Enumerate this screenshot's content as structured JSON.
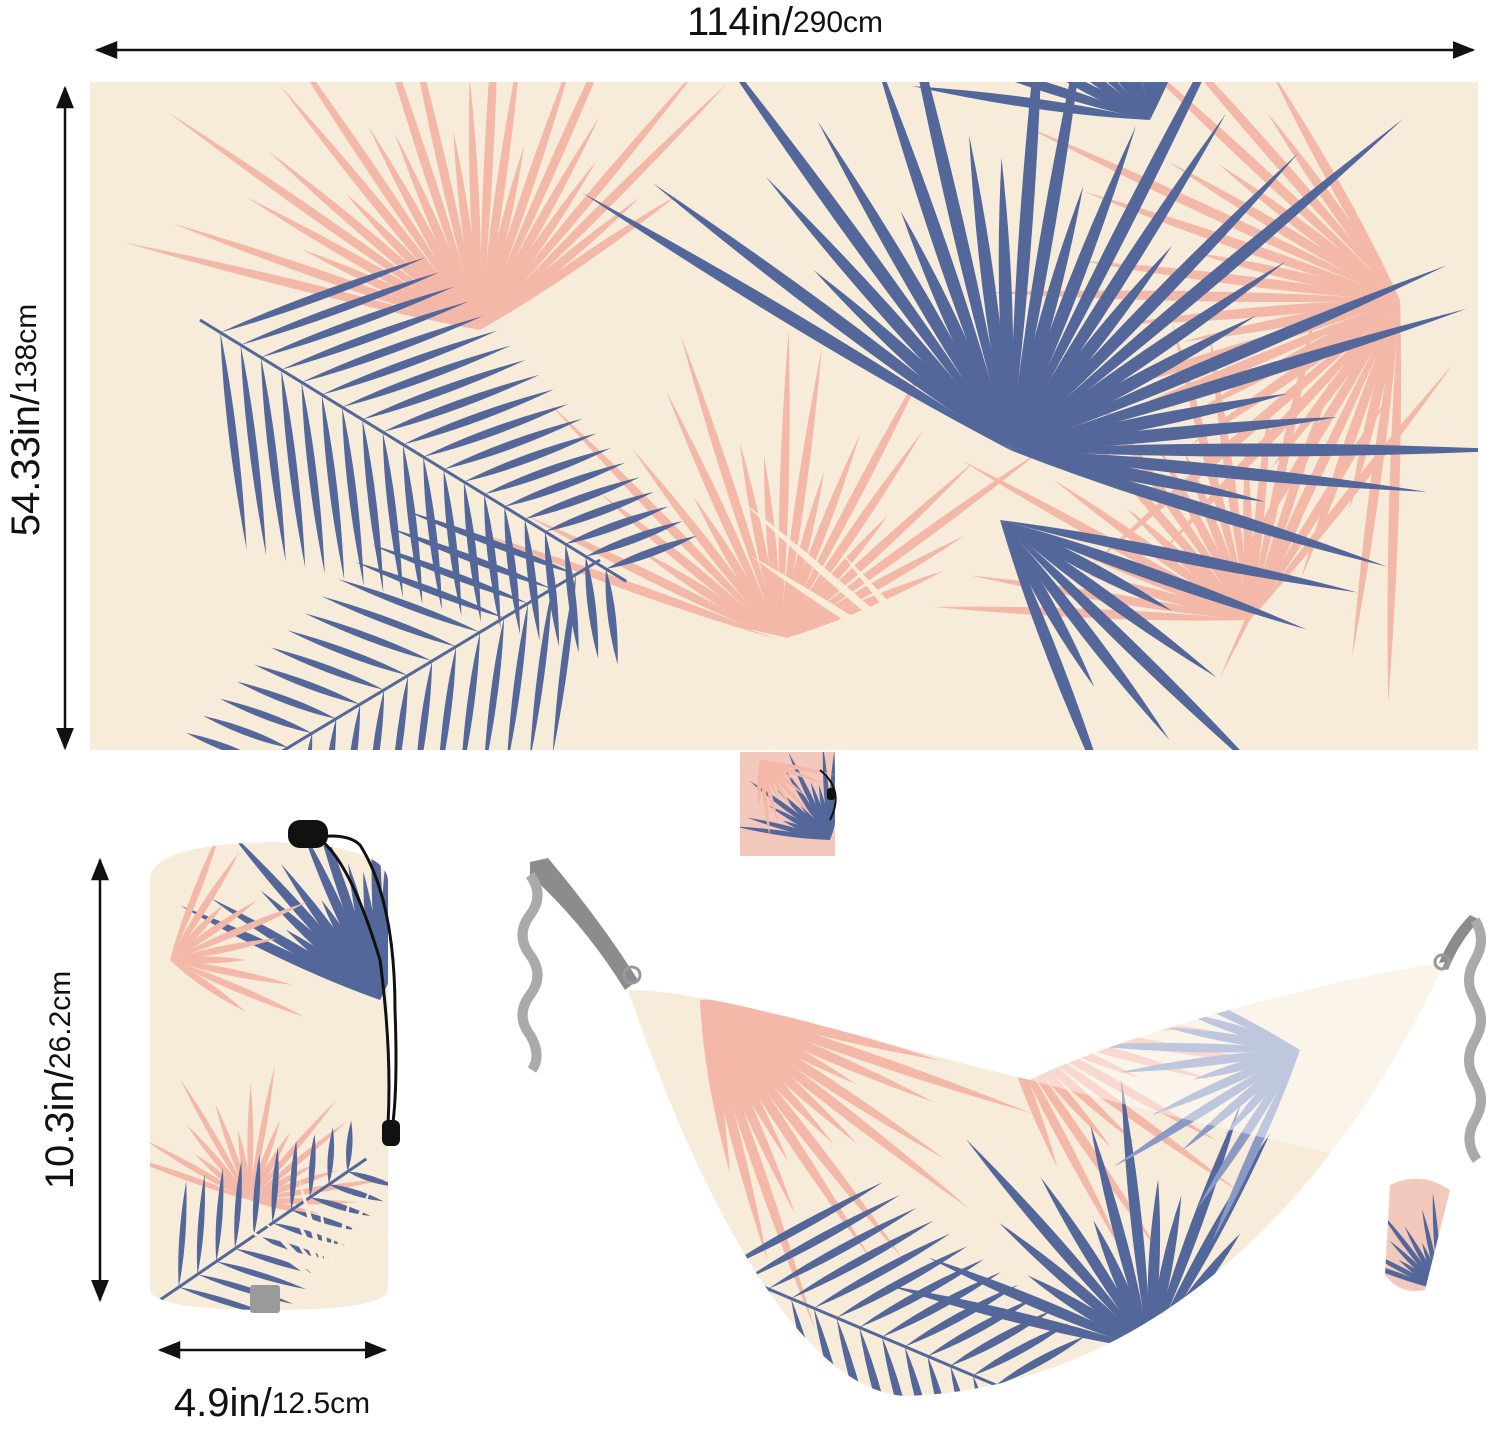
{
  "dimensions": {
    "flat_length": {
      "inches": "114in/",
      "centimeters": "290cm"
    },
    "flat_width": {
      "inches": "54.33in/",
      "centimeters": "138cm"
    },
    "bag_height": {
      "inches": "10.3in/",
      "centimeters": "26.2cm"
    },
    "bag_diameter": {
      "inches": "4.9in/",
      "centimeters": "12.5cm"
    }
  }
}
